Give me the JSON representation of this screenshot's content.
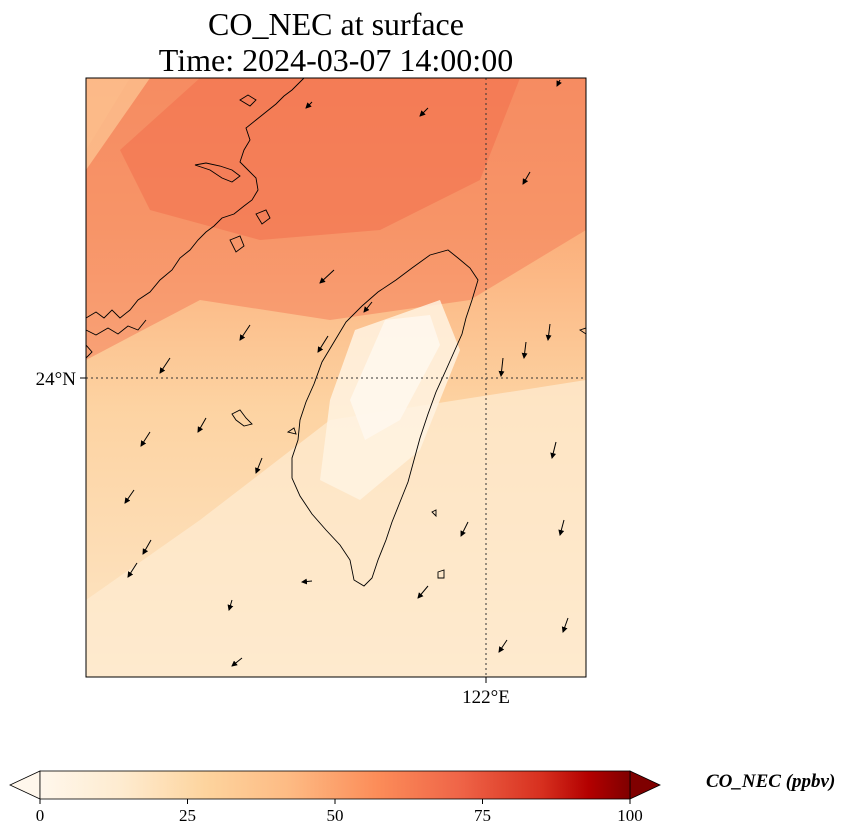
{
  "title": {
    "line1": "CO_NEC at surface",
    "line2": "Time: 2024-03-07 14:00:00"
  },
  "map": {
    "region": "Taiwan Strait",
    "gridlines": {
      "lat": "24°N",
      "lon": "122°E"
    },
    "field_colormap": "OrRd",
    "wind_vectors": true
  },
  "colorbar": {
    "label": "CO_NEC (ppbv)",
    "ticks": [
      "0",
      "25",
      "50",
      "75",
      "100"
    ],
    "min": 0,
    "max": 100,
    "extend": "both",
    "colors": [
      "#fff7ec",
      "#fdd49e",
      "#fdbb84",
      "#fc8d59",
      "#ef6548",
      "#d7301f",
      "#b30000",
      "#7f0000"
    ]
  }
}
